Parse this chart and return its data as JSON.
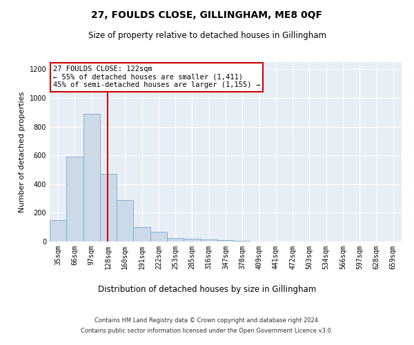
{
  "title": "27, FOULDS CLOSE, GILLINGHAM, ME8 0QF",
  "subtitle": "Size of property relative to detached houses in Gillingham",
  "xlabel": "Distribution of detached houses by size in Gillingham",
  "ylabel": "Number of detached properties",
  "categories": [
    "35sqm",
    "66sqm",
    "97sqm",
    "128sqm",
    "160sqm",
    "191sqm",
    "222sqm",
    "253sqm",
    "285sqm",
    "316sqm",
    "347sqm",
    "378sqm",
    "409sqm",
    "441sqm",
    "472sqm",
    "503sqm",
    "534sqm",
    "566sqm",
    "597sqm",
    "628sqm",
    "659sqm"
  ],
  "values": [
    150,
    590,
    890,
    470,
    290,
    100,
    65,
    25,
    20,
    15,
    10,
    5,
    0,
    0,
    0,
    0,
    0,
    0,
    0,
    0,
    0
  ],
  "bar_color": "#ccd9e8",
  "bar_edge_color": "#7aa8cc",
  "red_line_x": 2.95,
  "red_line_color": "#cc0000",
  "annotation_line1": "27 FOULDS CLOSE: 122sqm",
  "annotation_line2": "← 55% of detached houses are smaller (1,411)",
  "annotation_line3": "45% of semi-detached houses are larger (1,155) →",
  "annotation_box_color": "#ffffff",
  "annotation_box_edge": "#cc0000",
  "ylim": [
    0,
    1250
  ],
  "yticks": [
    0,
    200,
    400,
    600,
    800,
    1000,
    1200
  ],
  "background_color": "#e8eef5",
  "grid_color": "#ffffff",
  "footer_line1": "Contains HM Land Registry data © Crown copyright and database right 2024.",
  "footer_line2": "Contains public sector information licensed under the Open Government Licence v3.0."
}
